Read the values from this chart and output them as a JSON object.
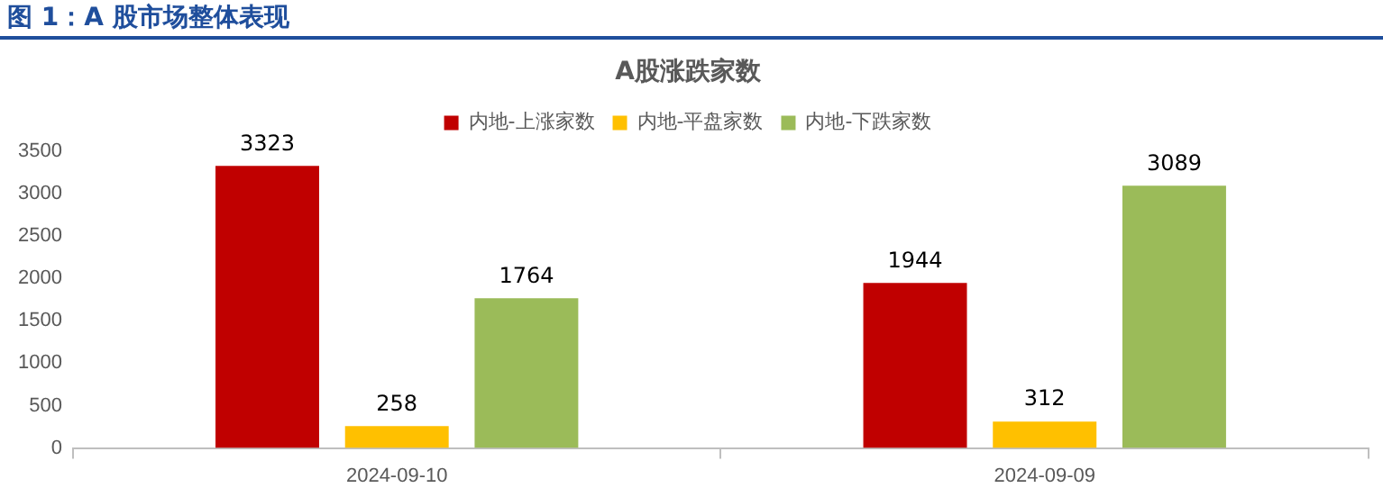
{
  "chart_data": {
    "type": "bar",
    "title": "图 1：A 股市场整体表现",
    "subtitle": "A股涨跌家数",
    "categories": [
      "2024-09-10",
      "2024-09-09"
    ],
    "series": [
      {
        "name": "内地-上涨家数",
        "color": "#c00000",
        "values": [
          3323,
          1944
        ]
      },
      {
        "name": "内地-平盘家数",
        "color": "#ffc000",
        "values": [
          258,
          312
        ]
      },
      {
        "name": "内地-下跌家数",
        "color": "#9bbb59",
        "values": [
          1764,
          3089
        ]
      }
    ],
    "ylim": [
      0,
      3500
    ],
    "yticks": [
      0,
      500,
      1000,
      1500,
      2000,
      2500,
      3000,
      3500
    ],
    "grid": false,
    "legend": "top",
    "data_labels": true
  }
}
